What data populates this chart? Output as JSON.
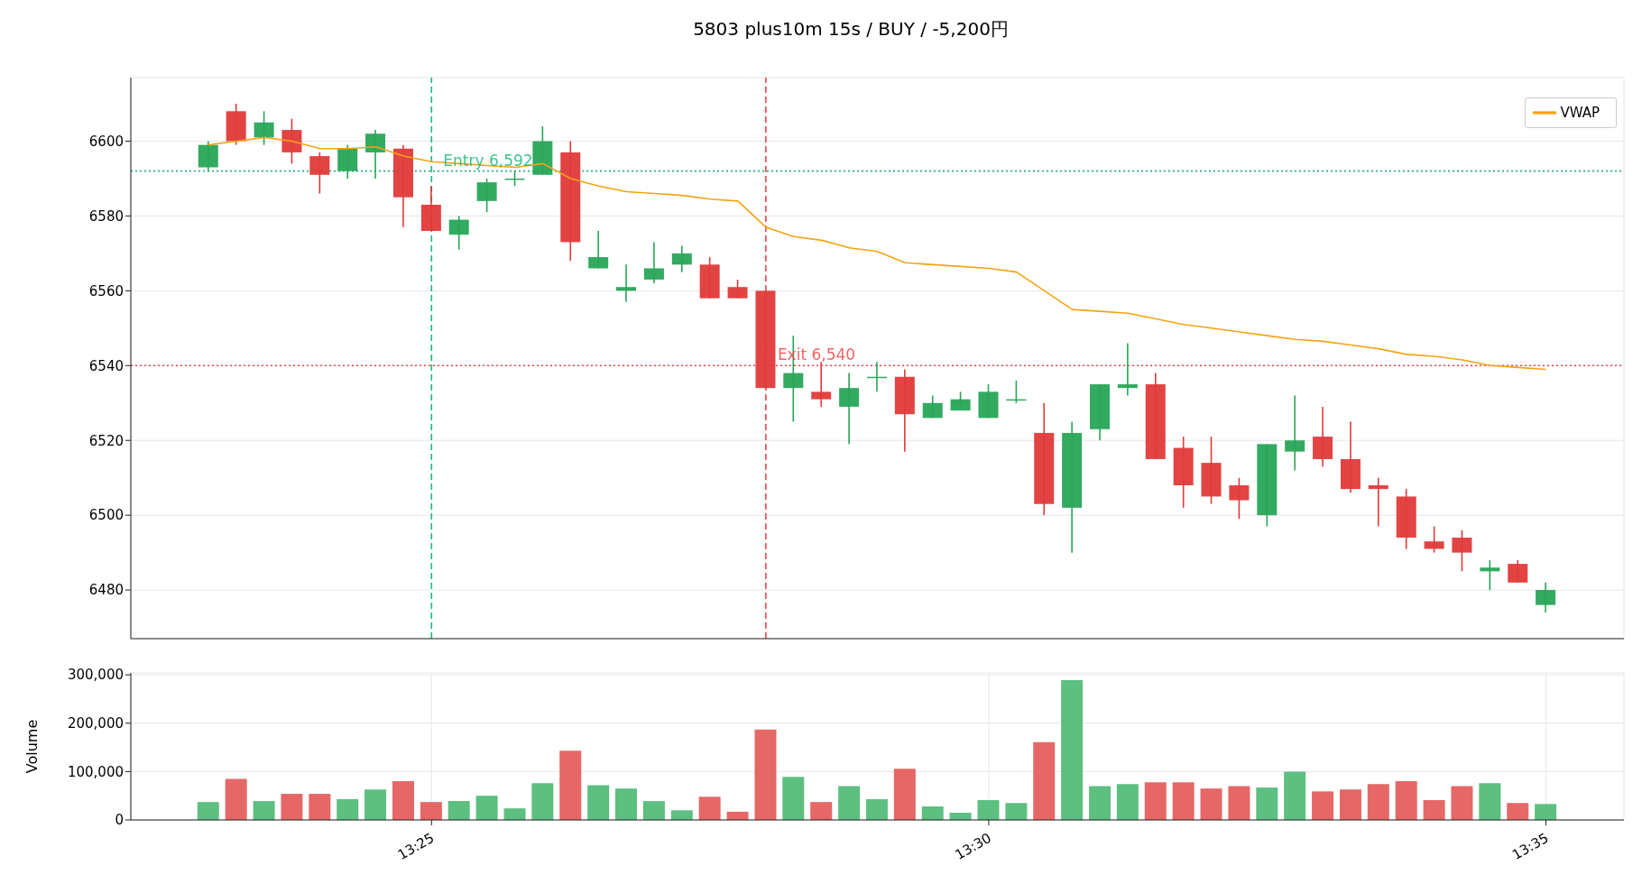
{
  "chart_data": [
    {
      "type": "candlestick",
      "title": "5803 plus10m 15s / BUY / -5,200円",
      "x": [
        13.38333,
        13.3875,
        13.39167,
        13.39583,
        13.4,
        13.40417,
        13.40833,
        13.4125,
        13.41667,
        13.42083,
        13.425,
        13.42917,
        13.43333,
        13.4375,
        13.44167,
        13.44583,
        13.45,
        13.45417,
        13.45833,
        13.4625,
        13.46667,
        13.47083,
        13.475,
        13.47917,
        13.48333,
        13.4875,
        13.49167,
        13.49583,
        13.5,
        13.50417,
        13.50833,
        13.5125,
        13.51667,
        13.52083,
        13.525,
        13.52917,
        13.53333,
        13.5375,
        13.54167,
        13.54583,
        13.55,
        13.55417,
        13.55833,
        13.5625,
        13.56667,
        13.57083,
        13.575,
        13.57917,
        13.58333
      ],
      "xlim": [
        13.3717,
        13.595
      ],
      "xticks": [
        {
          "value": 13.41667,
          "label": null
        },
        {
          "value": 13.5,
          "label": null
        },
        {
          "value": 13.58333,
          "label": null
        }
      ],
      "ylim": [
        6467,
        6617
      ],
      "yticks": [
        6480,
        6500,
        6520,
        6540,
        6560,
        6580,
        6600
      ],
      "tick_labels": "y",
      "grid": true,
      "legend": "top right",
      "series": [
        {
          "type": "candlestick",
          "ohlc": [
            [
              6593,
              6600,
              6592,
              6599
            ],
            [
              6608,
              6610,
              6599,
              6600
            ],
            [
              6601,
              6608,
              6599,
              6605
            ],
            [
              6603,
              6606,
              6594,
              6597
            ],
            [
              6596,
              6597,
              6586,
              6591
            ],
            [
              6592,
              6599,
              6590,
              6598
            ],
            [
              6597,
              6603,
              6590,
              6602
            ],
            [
              6598,
              6599,
              6577,
              6585
            ],
            [
              6583,
              6588,
              6576,
              6576
            ],
            [
              6575,
              6580,
              6571,
              6579
            ],
            [
              6584,
              6590,
              6581,
              6589
            ],
            [
              6590,
              6592,
              6588,
              6590
            ],
            [
              6591,
              6604,
              6591,
              6600
            ],
            [
              6597,
              6600,
              6568,
              6573
            ],
            [
              6566,
              6576,
              6566,
              6569
            ],
            [
              6560,
              6567,
              6557,
              6561
            ],
            [
              6563,
              6573,
              6562,
              6566
            ],
            [
              6567,
              6572,
              6565,
              6570
            ],
            [
              6567,
              6569,
              6558,
              6558
            ],
            [
              6561,
              6563,
              6558,
              6558
            ],
            [
              6560,
              6560,
              6534,
              6534
            ],
            [
              6534,
              6548,
              6525,
              6538
            ],
            [
              6533,
              6541,
              6529,
              6531
            ],
            [
              6529,
              6538,
              6519,
              6534
            ],
            [
              6537,
              6541,
              6533,
              6537
            ],
            [
              6537,
              6539,
              6517,
              6527
            ],
            [
              6526,
              6532,
              6526,
              6530
            ],
            [
              6528,
              6533,
              6528,
              6531
            ],
            [
              6526,
              6535,
              6526,
              6533
            ],
            [
              6531,
              6536,
              6530,
              6531
            ],
            [
              6522,
              6530,
              6500,
              6503
            ],
            [
              6502,
              6525,
              6490,
              6522
            ],
            [
              6523,
              6535,
              6520,
              6535
            ],
            [
              6534,
              6546,
              6532,
              6535
            ],
            [
              6535,
              6538,
              6515,
              6515
            ],
            [
              6518,
              6521,
              6502,
              6508
            ],
            [
              6514,
              6521,
              6503,
              6505
            ],
            [
              6508,
              6510,
              6499,
              6504
            ],
            [
              6500,
              6519,
              6497,
              6519
            ],
            [
              6517,
              6532,
              6512,
              6520
            ],
            [
              6521,
              6529,
              6513,
              6515
            ],
            [
              6515,
              6525,
              6506,
              6507
            ],
            [
              6508,
              6510,
              6497,
              6507
            ],
            [
              6505,
              6507,
              6491,
              6494
            ],
            [
              6493,
              6497,
              6490,
              6491
            ],
            [
              6494,
              6496,
              6485,
              6490
            ],
            [
              6485,
              6488,
              6480,
              6486
            ],
            [
              6487,
              6488,
              6482,
              6482
            ],
            [
              6476,
              6482,
              6474,
              6480
            ]
          ],
          "colors": [
            "#27a557",
            "#e03a3a",
            "#27a557",
            "#e03a3a",
            "#e03a3a",
            "#27a557",
            "#27a557",
            "#e03a3a",
            "#e03a3a",
            "#27a557",
            "#27a557",
            "#27a557",
            "#27a557",
            "#e03a3a",
            "#27a557",
            "#27a557",
            "#27a557",
            "#27a557",
            "#e03a3a",
            "#e03a3a",
            "#e03a3a",
            "#27a557",
            "#e03a3a",
            "#27a557",
            "#27a557",
            "#e03a3a",
            "#27a557",
            "#27a557",
            "#27a557",
            "#27a557",
            "#e03a3a",
            "#27a557",
            "#27a557",
            "#27a557",
            "#e03a3a",
            "#e03a3a",
            "#e03a3a",
            "#e03a3a",
            "#27a557",
            "#27a557",
            "#e03a3a",
            "#e03a3a",
            "#e03a3a",
            "#e03a3a",
            "#e03a3a",
            "#e03a3a",
            "#27a557",
            "#e03a3a",
            "#27a557"
          ]
        },
        {
          "type": "line",
          "name": "VWAP",
          "color": "#f5a314",
          "values": [
            6599,
            6600,
            6601,
            6600,
            6598,
            6598,
            6598.5,
            6596,
            6594.5,
            6594,
            6593.5,
            6593,
            6594,
            6590,
            6588,
            6586.5,
            6586,
            6585.5,
            6584.5,
            6584,
            6577,
            6574.5,
            6573.5,
            6571.5,
            6570.5,
            6567.5,
            6567,
            6566.5,
            6566,
            6565,
            6560,
            6555,
            6554.5,
            6554,
            6552.5,
            6551,
            6550,
            6549,
            6548,
            6547,
            6546.5,
            6545.5,
            6544.5,
            6543,
            6542.5,
            6541.5,
            6540,
            6539.5,
            6539
          ]
        }
      ],
      "ref_lines": [
        {
          "axis": "y",
          "value": 6592,
          "color": "#1db87a",
          "line_style": "dotted"
        },
        {
          "axis": "y",
          "value": 6540,
          "color": "#f04848",
          "line_style": "dotted"
        },
        {
          "axis": "x",
          "value": 13.41667,
          "color": "#1db87a",
          "line_style": "dashed"
        },
        {
          "axis": "x",
          "value": 13.46667,
          "color": "#f04848",
          "line_style": "dashed"
        }
      ],
      "annotations": [
        {
          "text": "Entry 6,592",
          "x": 13.41667,
          "y": 6592
        },
        {
          "text": "Exit 6,540",
          "x": 13.46667,
          "y": 6540
        }
      ]
    },
    {
      "type": "bar",
      "ylabel": "Volume",
      "x": [
        13.38333,
        13.3875,
        13.39167,
        13.39583,
        13.4,
        13.40417,
        13.40833,
        13.4125,
        13.41667,
        13.42083,
        13.425,
        13.42917,
        13.43333,
        13.4375,
        13.44167,
        13.44583,
        13.45,
        13.45417,
        13.45833,
        13.4625,
        13.46667,
        13.47083,
        13.475,
        13.47917,
        13.48333,
        13.4875,
        13.49167,
        13.49583,
        13.5,
        13.50417,
        13.50833,
        13.5125,
        13.51667,
        13.52083,
        13.525,
        13.52917,
        13.53333,
        13.5375,
        13.54167,
        13.54583,
        13.55,
        13.55417,
        13.55833,
        13.5625,
        13.56667,
        13.57083,
        13.575,
        13.57917,
        13.58333
      ],
      "xlim": [
        13.3717,
        13.595
      ],
      "xticks": [
        {
          "value": 13.41667,
          "label": "13:25"
        },
        {
          "value": 13.5,
          "label": "13:30"
        },
        {
          "value": 13.58333,
          "label": "13:35"
        }
      ],
      "ylim": [
        0,
        304000
      ],
      "yticks": [
        {
          "value": 0,
          "label": "0"
        },
        {
          "value": 100000,
          "label": "100,000"
        },
        {
          "value": 200000,
          "label": "200,000"
        },
        {
          "value": 300000,
          "label": "300,000"
        }
      ],
      "grid": true,
      "values": [
        37000,
        85000,
        39000,
        54000,
        54000,
        43000,
        63000,
        80000,
        37000,
        39000,
        50000,
        24000,
        76000,
        143000,
        72000,
        65000,
        39000,
        20000,
        48000,
        17000,
        187000,
        89000,
        37000,
        70000,
        43000,
        106000,
        28000,
        15000,
        41000,
        35000,
        161000,
        289000,
        70000,
        74000,
        78000,
        78000,
        65000,
        70000,
        67000,
        100000,
        59000,
        63000,
        74000,
        80000,
        41000,
        70000,
        76000,
        35000,
        33000
      ],
      "colors": [
        "#5dbf80",
        "#e66767",
        "#5dbf80",
        "#e66767",
        "#e66767",
        "#5dbf80",
        "#5dbf80",
        "#e66767",
        "#e66767",
        "#5dbf80",
        "#5dbf80",
        "#5dbf80",
        "#5dbf80",
        "#e66767",
        "#5dbf80",
        "#5dbf80",
        "#5dbf80",
        "#5dbf80",
        "#e66767",
        "#e66767",
        "#e66767",
        "#5dbf80",
        "#e66767",
        "#5dbf80",
        "#5dbf80",
        "#e66767",
        "#5dbf80",
        "#5dbf80",
        "#5dbf80",
        "#5dbf80",
        "#e66767",
        "#5dbf80",
        "#5dbf80",
        "#5dbf80",
        "#e66767",
        "#e66767",
        "#e66767",
        "#e66767",
        "#5dbf80",
        "#5dbf80",
        "#e66767",
        "#e66767",
        "#e66767",
        "#e66767",
        "#e66767",
        "#e66767",
        "#5dbf80",
        "#e66767",
        "#5dbf80"
      ]
    }
  ]
}
